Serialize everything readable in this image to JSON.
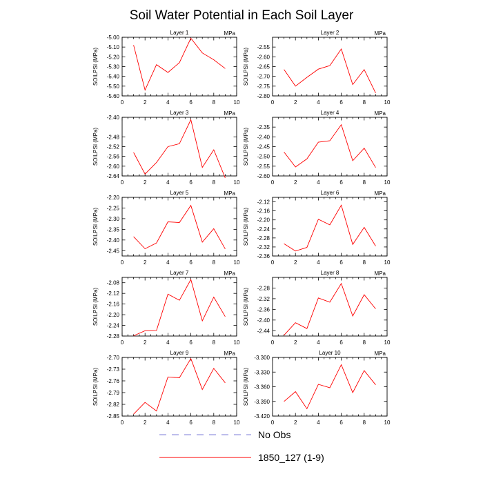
{
  "figure": {
    "title": "Soil Water Potential in Each Soil Layer",
    "legend": [
      {
        "label": "No Obs",
        "style": "dashed",
        "color": "#7b7bd8"
      },
      {
        "label": "1850_127 (1-9)",
        "style": "solid",
        "color": "#ff0000"
      }
    ]
  },
  "chart_data": [
    {
      "type": "line",
      "title": "Layer 1",
      "units": "MPa",
      "ylabel": "SOILPSI  (MPa)",
      "xlabel": "",
      "xlim": [
        0,
        10
      ],
      "xticks": [
        "0",
        "2",
        "4",
        "6",
        "8",
        "10"
      ],
      "ylim": [
        -5.6,
        -5.0
      ],
      "yticks": [
        "-5.00",
        "-5.10",
        "-5.20",
        "-5.30",
        "-5.40",
        "-5.50",
        "-5.60"
      ],
      "x": [
        1,
        2,
        3,
        4,
        5,
        6,
        7,
        8,
        9
      ],
      "series": [
        {
          "name": "1850_127 (1-9)",
          "values": [
            -5.08,
            -5.54,
            -5.28,
            -5.36,
            -5.26,
            -5.01,
            -5.16,
            -5.23,
            -5.32
          ]
        }
      ]
    },
    {
      "type": "line",
      "title": "Layer 2",
      "units": "MPa",
      "ylabel": "SOILPSI  (MPa)",
      "xlabel": "",
      "xlim": [
        0,
        10
      ],
      "xticks": [
        "0",
        "2",
        "4",
        "6",
        "8",
        "10"
      ],
      "ylim": [
        -2.8,
        -2.5
      ],
      "yticks": [
        "-2.55",
        "-2.60",
        "-2.65",
        "-2.70",
        "-2.75",
        "-2.80"
      ],
      "x": [
        1,
        2,
        3,
        4,
        5,
        6,
        7,
        8,
        9
      ],
      "series": [
        {
          "name": "1850_127 (1-9)",
          "values": [
            -2.665,
            -2.75,
            -2.705,
            -2.663,
            -2.645,
            -2.56,
            -2.742,
            -2.665,
            -2.785
          ]
        }
      ]
    },
    {
      "type": "line",
      "title": "Layer 3",
      "units": "MPa",
      "ylabel": "SOILPSI  (MPa)",
      "xlabel": "",
      "xlim": [
        0,
        10
      ],
      "xticks": [
        "0",
        "2",
        "4",
        "6",
        "8",
        "10"
      ],
      "ylim": [
        -2.64,
        -2.4
      ],
      "yticks": [
        "-2.40",
        "-2.48",
        "-2.52",
        "-2.56",
        "-2.60",
        "-2.64"
      ],
      "x": [
        1,
        2,
        3,
        4,
        5,
        6,
        7,
        8,
        9
      ],
      "series": [
        {
          "name": "1850_127 (1-9)",
          "values": [
            -2.544,
            -2.632,
            -2.585,
            -2.52,
            -2.508,
            -2.41,
            -2.605,
            -2.533,
            -2.648
          ]
        }
      ]
    },
    {
      "type": "line",
      "title": "Layer 4",
      "units": "MPa",
      "ylabel": "SOILPSI  (MPa)",
      "xlabel": "",
      "xlim": [
        0,
        10
      ],
      "xticks": [
        "0",
        "2",
        "4",
        "6",
        "8",
        "10"
      ],
      "ylim": [
        -2.6,
        -2.3
      ],
      "yticks": [
        "-2.35",
        "-2.40",
        "-2.45",
        "-2.50",
        "-2.55",
        "-2.60"
      ],
      "x": [
        1,
        2,
        3,
        4,
        5,
        6,
        7,
        8,
        9
      ],
      "series": [
        {
          "name": "1850_127 (1-9)",
          "values": [
            -2.478,
            -2.554,
            -2.513,
            -2.427,
            -2.42,
            -2.338,
            -2.522,
            -2.458,
            -2.557
          ]
        }
      ]
    },
    {
      "type": "line",
      "title": "Layer 5",
      "units": "MPa",
      "ylabel": "SOILPSI  (MPa)",
      "xlabel": "",
      "xlim": [
        0,
        10
      ],
      "xticks": [
        "0",
        "2",
        "4",
        "6",
        "8",
        "10"
      ],
      "ylim": [
        -2.475,
        -2.2
      ],
      "yticks": [
        "-2.20",
        "-2.25",
        "-2.30",
        "-2.35",
        "-2.40",
        "-2.45"
      ],
      "x": [
        1,
        2,
        3,
        4,
        5,
        6,
        7,
        8,
        9
      ],
      "series": [
        {
          "name": "1850_127 (1-9)",
          "values": [
            -2.384,
            -2.441,
            -2.414,
            -2.315,
            -2.318,
            -2.238,
            -2.41,
            -2.347,
            -2.442
          ]
        }
      ]
    },
    {
      "type": "line",
      "title": "Layer 6",
      "units": "MPa",
      "ylabel": "SOILPSI  (MPa)",
      "xlabel": "",
      "xlim": [
        0,
        10
      ],
      "xticks": [
        "0",
        "2",
        "4",
        "6",
        "8",
        "10"
      ],
      "ylim": [
        -2.36,
        -2.1
      ],
      "yticks": [
        "-2.12",
        "-2.16",
        "-2.20",
        "-2.24",
        "-2.28",
        "-2.32",
        "-2.36"
      ],
      "x": [
        1,
        2,
        3,
        4,
        5,
        6,
        7,
        8,
        9
      ],
      "series": [
        {
          "name": "1850_127 (1-9)",
          "values": [
            -2.306,
            -2.338,
            -2.322,
            -2.197,
            -2.222,
            -2.135,
            -2.309,
            -2.233,
            -2.316
          ]
        }
      ]
    },
    {
      "type": "line",
      "title": "Layer 7",
      "units": "MPa",
      "ylabel": "SOILPSI  (MPa)",
      "xlabel": "",
      "xlim": [
        0,
        10
      ],
      "xticks": [
        "0",
        "2",
        "4",
        "6",
        "8",
        "10"
      ],
      "ylim": [
        -2.28,
        -2.06
      ],
      "yticks": [
        "-2.08",
        "-2.12",
        "-2.16",
        "-2.20",
        "-2.24",
        "-2.28"
      ],
      "x": [
        1,
        2,
        3,
        4,
        5,
        6,
        7,
        8,
        9
      ],
      "series": [
        {
          "name": "1850_127 (1-9)",
          "values": [
            -2.279,
            -2.26,
            -2.259,
            -2.123,
            -2.146,
            -2.068,
            -2.223,
            -2.134,
            -2.207
          ]
        }
      ]
    },
    {
      "type": "line",
      "title": "Layer 8",
      "units": "MPa",
      "ylabel": "SOILPSI  (MPa)",
      "xlabel": "",
      "xlim": [
        0,
        10
      ],
      "xticks": [
        "0",
        "2",
        "4",
        "6",
        "8",
        "10"
      ],
      "ylim": [
        -2.46,
        -2.24
      ],
      "yticks": [
        "-2.28",
        "-2.32",
        "-2.36",
        "-2.40",
        "-2.44"
      ],
      "x": [
        1,
        2,
        3,
        4,
        5,
        6,
        7,
        8,
        9
      ],
      "series": [
        {
          "name": "1850_127 (1-9)",
          "values": [
            -2.457,
            -2.41,
            -2.432,
            -2.317,
            -2.333,
            -2.263,
            -2.385,
            -2.305,
            -2.358
          ]
        }
      ]
    },
    {
      "type": "line",
      "title": "Layer 9",
      "units": "MPa",
      "ylabel": "SOILPSI  (MPa)",
      "xlabel": "",
      "xlim": [
        0,
        10
      ],
      "xticks": [
        "0",
        "2",
        "4",
        "6",
        "8",
        "10"
      ],
      "ylim": [
        -2.85,
        -2.7
      ],
      "yticks": [
        "-2.70",
        "-2.73",
        "-2.76",
        "-2.79",
        "-2.82",
        "-2.85"
      ],
      "x": [
        1,
        2,
        3,
        4,
        5,
        6,
        7,
        8,
        9
      ],
      "series": [
        {
          "name": "1850_127 (1-9)",
          "values": [
            -2.845,
            -2.815,
            -2.837,
            -2.75,
            -2.752,
            -2.703,
            -2.782,
            -2.728,
            -2.765
          ]
        }
      ]
    },
    {
      "type": "line",
      "title": "Layer 10",
      "units": "MPa",
      "ylabel": "SOILPSI  (MPa)",
      "xlabel": "",
      "xlim": [
        0,
        10
      ],
      "xticks": [
        "0",
        "2",
        "4",
        "6",
        "8",
        "10"
      ],
      "ylim": [
        -3.42,
        -3.3
      ],
      "yticks": [
        "-3.300",
        "-3.330",
        "-3.360",
        "-3.390",
        "-3.420"
      ],
      "x": [
        1,
        2,
        3,
        4,
        5,
        6,
        7,
        8,
        9
      ],
      "series": [
        {
          "name": "1850_127 (1-9)",
          "values": [
            -3.39,
            -3.37,
            -3.405,
            -3.355,
            -3.362,
            -3.315,
            -3.372,
            -3.327,
            -3.356
          ]
        }
      ]
    }
  ]
}
